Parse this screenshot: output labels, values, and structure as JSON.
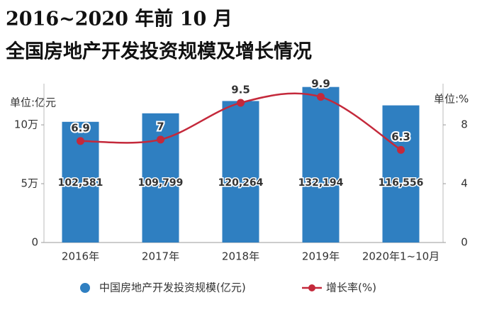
{
  "chart_data": {
    "type": "bar",
    "title": [
      "2016~2020 年前 10 月",
      "全国房地产开发投资规模及增长情况"
    ],
    "y_label": "单位:亿元",
    "y2_label": "单位:%",
    "categories": [
      "2016年",
      "2017年",
      "2018年",
      "2019年",
      "2020年1~10月"
    ],
    "series": [
      {
        "name": "中国房地产开发投资规模(亿元)",
        "type": "bar",
        "color": "#2f7fc1",
        "values": [
          102581,
          109799,
          120264,
          132194,
          116556
        ],
        "value_labels": [
          "102,581",
          "109,799",
          "120,264",
          "132,194",
          "116,556"
        ]
      },
      {
        "name": "增长率(%)",
        "type": "line",
        "axis": "y2",
        "color": "#c4293b",
        "values": [
          6.9,
          7,
          9.5,
          9.9,
          6.3
        ]
      }
    ],
    "ylim": [
      0,
      135000
    ],
    "yticks": [
      0,
      {
        "value": 50000,
        "label": "5万"
      },
      {
        "value": 100000,
        "label": "10万"
      }
    ],
    "y2lim": [
      0,
      10.8
    ],
    "y2ticks": [
      0,
      4,
      8
    ]
  }
}
